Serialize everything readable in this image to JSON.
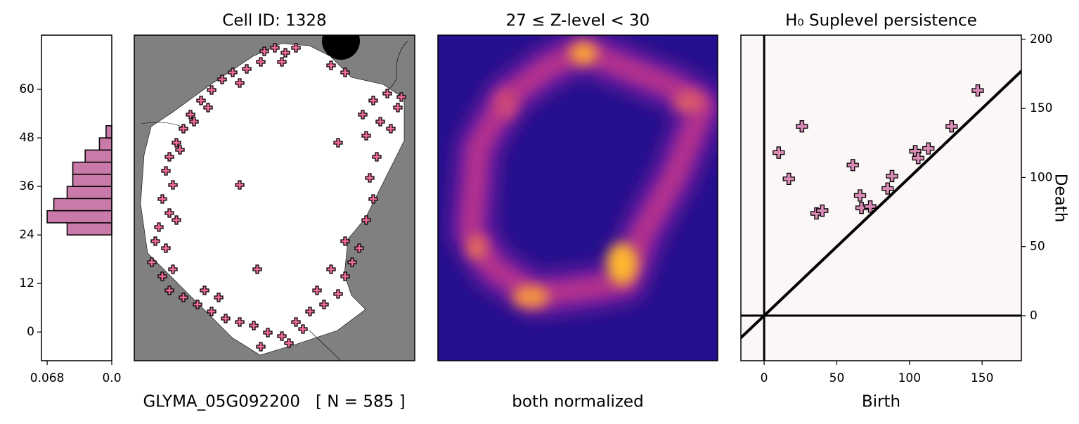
{
  "chart_data": [
    {
      "type": "histogram",
      "xlabel": "GLYMA_05G092200   [ N = 585 ]",
      "bins": [
        24,
        27,
        30,
        33,
        36,
        39,
        42,
        45,
        48,
        51
      ],
      "counts": [
        0.047,
        0.068,
        0.061,
        0.047,
        0.041,
        0.041,
        0.028,
        0.013,
        0.006
      ],
      "color": "#c97aa8",
      "xlim": [
        0.074,
        0
      ],
      "xticks": [
        0.068,
        {
          "value": 0,
          "label": "0.0"
        }
      ],
      "ylim": [
        -7.1,
        73.4
      ],
      "yticks": [
        0,
        12,
        24,
        36,
        48,
        60
      ]
    },
    {
      "type": "scatter",
      "title": "Cell ID: 1328",
      "color": "#f06c9b",
      "x": [
        185,
        200,
        215,
        230,
        180,
        210,
        160,
        140,
        125,
        280,
        300,
        150,
        110,
        95,
        80,
        70,
        60,
        50,
        65,
        85,
        105,
        45,
        55,
        40,
        50,
        35,
        60,
        30,
        45,
        25,
        40,
        55,
        50,
        70,
        90,
        110,
        130,
        150,
        100,
        120,
        170,
        190,
        210,
        230,
        250,
        270,
        290,
        260,
        240,
        180,
        220,
        300,
        310,
        280,
        320,
        300,
        330,
        340,
        335,
        345,
        330,
        350,
        340,
        360,
        375,
        365,
        325,
        380,
        150,
        175,
        290
      ],
      "y": [
        440,
        445,
        438,
        445,
        425,
        425,
        415,
        410,
        400,
        420,
        410,
        395,
        385,
        370,
        350,
        330,
        310,
        290,
        300,
        340,
        360,
        270,
        250,
        230,
        210,
        190,
        200,
        170,
        160,
        140,
        120,
        130,
        100,
        90,
        80,
        70,
        60,
        55,
        100,
        90,
        50,
        40,
        35,
        55,
        70,
        80,
        95,
        100,
        45,
        20,
        25,
        120,
        140,
        130,
        160,
        170,
        200,
        230,
        260,
        290,
        320,
        340,
        370,
        380,
        360,
        330,
        350,
        375,
        250,
        130,
        310
      ],
      "xlim": [
        0,
        399
      ],
      "ylim": [
        0,
        463
      ]
    },
    {
      "type": "density",
      "title": "27 ≤  Z-level  < 30",
      "xlabel": "both normalized"
    },
    {
      "type": "scatter",
      "title": "H₀ Suplevel persistence",
      "xlabel": "Birth",
      "ylabel": "Death",
      "color": "#d98bb5",
      "x": [
        10,
        26,
        17,
        61,
        66,
        67,
        73,
        36,
        40,
        88,
        85,
        104,
        106,
        113,
        129,
        147
      ],
      "y": [
        118,
        137,
        99,
        109,
        87,
        78,
        79,
        74,
        76,
        101,
        92,
        119,
        114,
        121,
        137,
        163
      ],
      "xlim": [
        -16,
        177
      ],
      "ylim": [
        -32.6,
        203
      ],
      "xticks": [
        0,
        50,
        100,
        150
      ],
      "yticks": [
        0,
        50,
        100,
        150,
        200
      ],
      "y_axis_side": "right",
      "diagonal": true,
      "background": "#fcf7f7"
    }
  ]
}
